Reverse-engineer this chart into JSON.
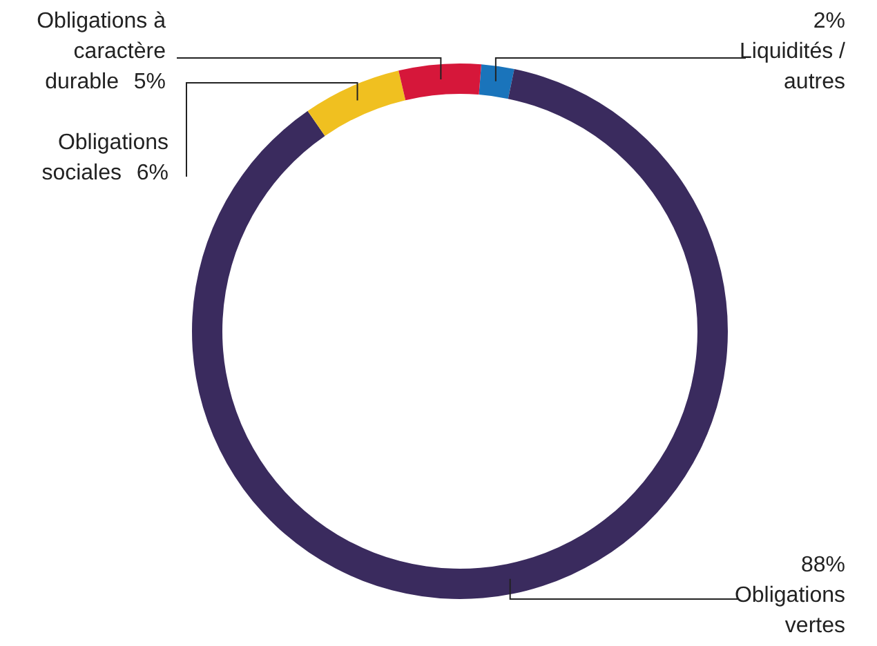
{
  "chart_data": {
    "type": "donut",
    "categories": [
      "Liquidités / autres",
      "Obligations vertes",
      "Obligations sociales",
      "Obligations à caractère durable"
    ],
    "values": [
      2,
      88,
      6,
      5
    ],
    "colors": [
      "#1a74bb",
      "#3a2b5e",
      "#f0c020",
      "#d6173a"
    ],
    "value_labels": [
      "2%",
      "88%",
      "6%",
      "5%"
    ]
  }
}
